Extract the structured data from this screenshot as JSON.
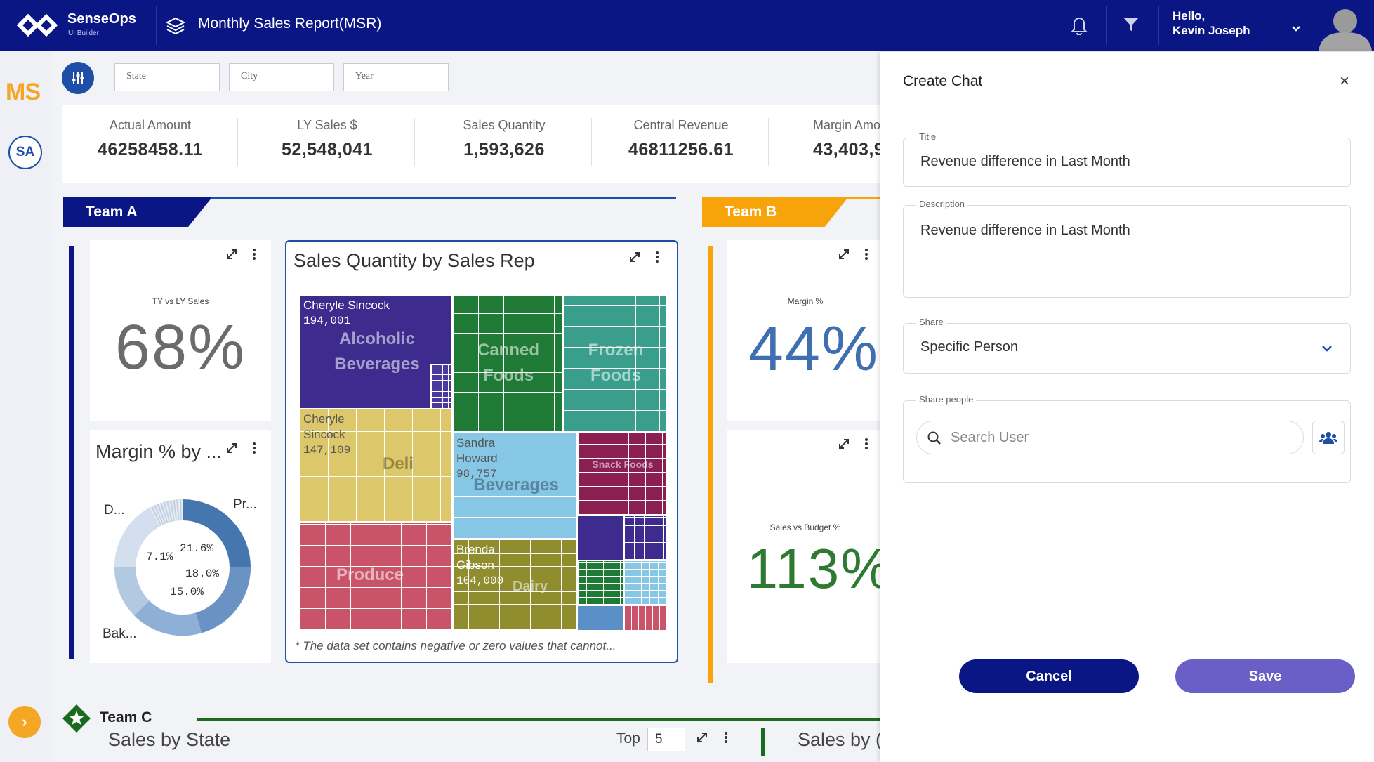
{
  "header": {
    "brand": "SenseOps",
    "brand_sub": "UI Builder",
    "app_title": "Monthly Sales Report(MSR)",
    "greeting": "Hello,",
    "user_name": "Kevin Joseph"
  },
  "rail": {
    "ms_logo": "MS",
    "user_initials": "SA",
    "expand_glyph": "›"
  },
  "filters": {
    "state": "State",
    "city": "City",
    "year": "Year"
  },
  "kpis": [
    {
      "label": "Actual Amount",
      "value": "46258458.11"
    },
    {
      "label": "LY Sales $",
      "value": "52,548,041"
    },
    {
      "label": "Sales Quantity",
      "value": "1,593,626"
    },
    {
      "label": "Central Revenue",
      "value": "46811256.61"
    },
    {
      "label": "Margin Amo",
      "value": "43,403,9"
    }
  ],
  "teams": {
    "a": "Team A",
    "b": "Team B",
    "c": "Team C"
  },
  "team_a": {
    "kpi_label": "TY vs LY Sales",
    "kpi_value": "68%",
    "donut_title": "Margin % by ...",
    "donut_labels": {
      "d": "D...",
      "pr": "Pr...",
      "bak": "Bak..."
    },
    "donut_values": [
      "7.1%",
      "21.6%",
      "18.0%",
      "15.0%"
    ]
  },
  "treemap": {
    "title": "Sales Quantity by Sales Rep",
    "note": "* The data set contains negative or zero values that cannot...",
    "reps": [
      {
        "name": "Cheryle Sincock",
        "value": "194,001"
      },
      {
        "name": "Cheryle Sincock",
        "value": "147,109"
      },
      {
        "name": "Sandra Howard",
        "value": "98,757"
      },
      {
        "name": "Brenda Gibson",
        "value": "104,000"
      }
    ],
    "categories": [
      "Alcoholic Beverages",
      "Canned Foods",
      "Frozen Foods",
      "Deli",
      "Beverages",
      "Snack Foods",
      "Produce",
      "Dairy"
    ]
  },
  "team_b": {
    "margin_label": "Margin %",
    "margin_value": "44%",
    "budget_label": "Sales vs Budget %",
    "budget_value": "113%"
  },
  "team_c": {
    "chart_title": "Sales by State",
    "top_label": "Top",
    "top_value": "5",
    "chart2_title": "Sales by ("
  },
  "chat": {
    "title": "Create Chat",
    "close": "×",
    "title_label": "Title",
    "title_value": "Revenue difference in Last Month",
    "desc_label": "Description",
    "desc_value": "Revenue difference in Last Month",
    "share_label": "Share",
    "share_value": "Specific Person",
    "people_label": "Share people",
    "search_placeholder": "Search User",
    "cancel": "Cancel",
    "save": "Save"
  },
  "colors": {
    "navy": "#0a1683",
    "blue": "#1e4fa8",
    "orange": "#f7a30a",
    "green": "#1a6b1e",
    "save": "#6a5fc7"
  }
}
